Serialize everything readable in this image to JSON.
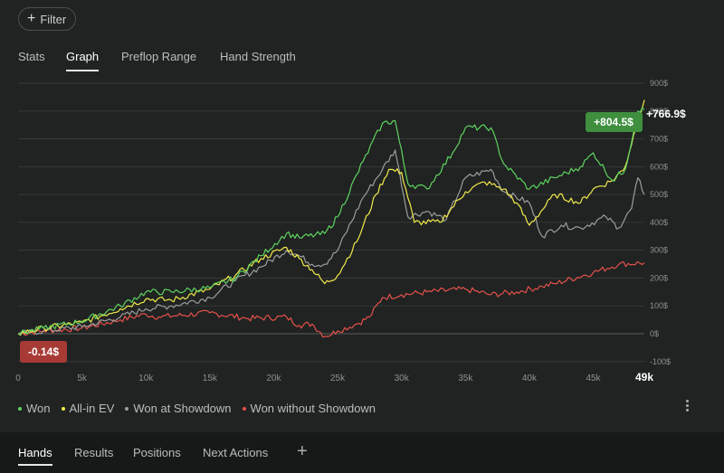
{
  "filter": {
    "label": "Filter",
    "icon": "plus-icon"
  },
  "tabs": [
    {
      "label": "Stats",
      "active": false
    },
    {
      "label": "Graph",
      "active": true
    },
    {
      "label": "Preflop Range",
      "active": false
    },
    {
      "label": "Hand Strength",
      "active": false
    }
  ],
  "legend": [
    {
      "label": "Won",
      "color": "#5fd35f"
    },
    {
      "label": "All-in EV",
      "color": "#f2ea4b"
    },
    {
      "label": "Won at Showdown",
      "color": "#9a9d9b"
    },
    {
      "label": "Won without Showdown",
      "color": "#e4504a"
    }
  ],
  "bottom_tabs": [
    {
      "label": "Hands",
      "active": true
    },
    {
      "label": "Results",
      "active": false
    },
    {
      "label": "Positions",
      "active": false
    },
    {
      "label": "Next Actions",
      "active": false
    }
  ],
  "add_tab_label": "+",
  "chart_data": {
    "type": "line",
    "x_ticks": [
      "0",
      "5k",
      "10k",
      "15k",
      "20k",
      "25k",
      "30k",
      "35k",
      "40k",
      "45k",
      "49k"
    ],
    "y_ticks": [
      "900$",
      "800$",
      "700$",
      "600$",
      "500$",
      "400$",
      "300$",
      "200$",
      "100$",
      "0$",
      "-100$"
    ],
    "ylim": [
      -100,
      900
    ],
    "xlim": [
      0,
      49000
    ],
    "grid": true,
    "legend_position": "bottom-left",
    "end_labels": {
      "green_box": "+804.5$",
      "white": "+766.9$",
      "start_red_box": "-0.14$"
    },
    "series": [
      {
        "name": "Won",
        "color": "#5fd35f",
        "x": [
          0,
          2000,
          5000,
          8000,
          10000,
          12000,
          15000,
          17000,
          19000,
          21000,
          22000,
          24000,
          25000,
          27000,
          28500,
          29500,
          30500,
          32000,
          34000,
          35000,
          37000,
          38000,
          40000,
          42000,
          44000,
          45000,
          46500,
          47500,
          48500,
          49000
        ],
        "y": [
          0,
          20,
          45,
          100,
          150,
          150,
          165,
          200,
          280,
          360,
          345,
          360,
          420,
          620,
          755,
          765,
          540,
          520,
          650,
          740,
          740,
          610,
          520,
          560,
          600,
          650,
          550,
          590,
          800,
          805
        ]
      },
      {
        "name": "All-in EV",
        "color": "#f2ea4b",
        "x": [
          0,
          2000,
          5000,
          8000,
          10000,
          12000,
          15000,
          17000,
          19000,
          21000,
          22000,
          23000,
          24000,
          25000,
          26500,
          28000,
          29000,
          30000,
          31000,
          33000,
          35000,
          36500,
          38000,
          39000,
          40000,
          42000,
          44000,
          45000,
          46500,
          47500,
          48500,
          49000
        ],
        "y": [
          0,
          20,
          40,
          90,
          125,
          120,
          160,
          210,
          270,
          310,
          270,
          230,
          180,
          210,
          330,
          500,
          590,
          580,
          400,
          400,
          510,
          545,
          520,
          470,
          390,
          500,
          470,
          520,
          550,
          600,
          770,
          840
        ]
      },
      {
        "name": "Won at Showdown",
        "color": "#9a9d9b",
        "x": [
          0,
          2000,
          5000,
          8000,
          10000,
          12000,
          15000,
          17000,
          19000,
          21000,
          22000,
          23000,
          24000,
          25000,
          27000,
          28500,
          29500,
          30500,
          32000,
          33500,
          35000,
          37000,
          38000,
          40000,
          41000,
          42500,
          44000,
          46000,
          47000,
          48000,
          48500,
          49000
        ],
        "y": [
          0,
          10,
          25,
          60,
          90,
          100,
          130,
          190,
          240,
          300,
          280,
          250,
          250,
          300,
          490,
          590,
          660,
          420,
          440,
          410,
          560,
          590,
          510,
          470,
          350,
          390,
          380,
          420,
          380,
          450,
          560,
          500
        ]
      },
      {
        "name": "Won without Showdown",
        "color": "#e4504a",
        "x": [
          0,
          2000,
          5000,
          8000,
          10000,
          11000,
          15000,
          18000,
          21000,
          22000,
          23000,
          24000,
          25000,
          26500,
          27500,
          28500,
          30000,
          32000,
          35000,
          37000,
          39000,
          41000,
          42000,
          45000,
          47000,
          49000
        ],
        "y": [
          0,
          10,
          20,
          50,
          70,
          60,
          75,
          55,
          60,
          30,
          35,
          -10,
          10,
          35,
          60,
          130,
          140,
          150,
          160,
          140,
          150,
          170,
          180,
          220,
          250,
          255
        ]
      }
    ]
  }
}
